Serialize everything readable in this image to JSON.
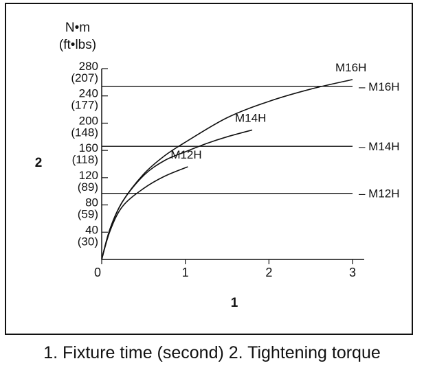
{
  "chart_data": {
    "type": "line",
    "y_unit_label": "N•m",
    "y_unit_label_alt": "(ft•lbs)",
    "xlabel": "1",
    "ylabel": "2",
    "xlim": [
      0,
      3
    ],
    "ylim": [
      0,
      280
    ],
    "x_ticks": [
      {
        "value": 0,
        "label": "0"
      },
      {
        "value": 1,
        "label": "1"
      },
      {
        "value": 2,
        "label": "2"
      },
      {
        "value": 3,
        "label": "3"
      }
    ],
    "y_ticks": [
      {
        "value": 280,
        "label": "280",
        "alt": "(207)"
      },
      {
        "value": 240,
        "label": "240",
        "alt": "(177)"
      },
      {
        "value": 200,
        "label": "200",
        "alt": "(148)"
      },
      {
        "value": 160,
        "label": "160",
        "alt": "(118)"
      },
      {
        "value": 120,
        "label": "120",
        "alt": "(89)"
      },
      {
        "value": 80,
        "label": "80",
        "alt": "(59)"
      },
      {
        "value": 40,
        "label": "40",
        "alt": "(30)"
      }
    ],
    "series": [
      {
        "name": "M16H",
        "x": [
          0,
          0.1,
          0.25,
          0.5,
          0.75,
          1,
          1.5,
          2,
          2.5,
          3
        ],
        "y": [
          0,
          45,
          85,
          125,
          152,
          172,
          208,
          232,
          250,
          264
        ]
      },
      {
        "name": "M14H",
        "x": [
          0,
          0.1,
          0.25,
          0.5,
          0.75,
          1,
          1.25,
          1.5,
          1.8
        ],
        "y": [
          0,
          45,
          85,
          123,
          145,
          158,
          170,
          180,
          190
        ]
      },
      {
        "name": "M12H",
        "x": [
          0,
          0.1,
          0.25,
          0.5,
          0.75,
          1.03
        ],
        "y": [
          0,
          42,
          78,
          104,
          122,
          136
        ]
      }
    ],
    "reference_lines": [
      {
        "name": "M16H",
        "y": 254
      },
      {
        "name": "M14H",
        "y": 166
      },
      {
        "name": "M12H",
        "y": 97
      }
    ]
  },
  "caption": "1. Fixture time (second) 2. Tightening torque"
}
